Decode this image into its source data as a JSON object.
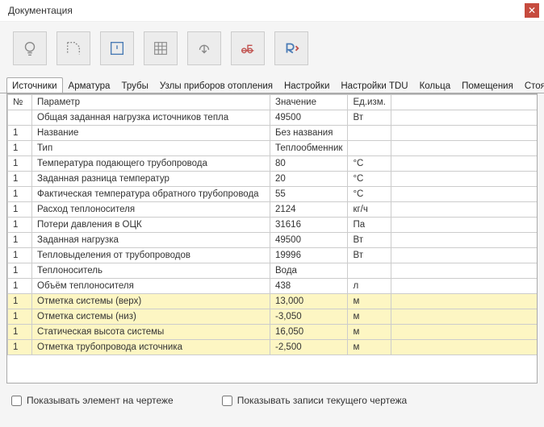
{
  "window": {
    "title": "Документация"
  },
  "toolbar_icons": [
    "bulb",
    "shape",
    "warn",
    "grid",
    "export",
    "object",
    "revit"
  ],
  "tabs": {
    "items": [
      "Источники",
      "Арматура",
      "Трубы",
      "Узлы приборов отопления",
      "Настройки",
      "Настройки TDU",
      "Кольца",
      "Помещения",
      "Стояки в перек"
    ],
    "active": 0
  },
  "table": {
    "headers": {
      "num": "№",
      "param": "Параметр",
      "value": "Значение",
      "unit": "Ед.изм."
    },
    "rows": [
      {
        "n": "",
        "p": "Общая заданная нагрузка источников тепла",
        "v": "49500",
        "u": "Вт",
        "hl": false
      },
      {
        "n": "1",
        "p": "Название",
        "v": "Без названия",
        "u": "",
        "hl": false
      },
      {
        "n": "1",
        "p": "Тип",
        "v": "Теплообменник",
        "u": "",
        "hl": false
      },
      {
        "n": "1",
        "p": "Температура подающего трубопровода",
        "v": "80",
        "u": "°C",
        "hl": false
      },
      {
        "n": "1",
        "p": "Заданная разница температур",
        "v": "20",
        "u": "°C",
        "hl": false
      },
      {
        "n": "1",
        "p": "Фактическая температура обратного трубопровода",
        "v": "55",
        "u": "°C",
        "hl": false
      },
      {
        "n": "1",
        "p": "Расход теплоносителя",
        "v": "2124",
        "u": "кг/ч",
        "hl": false
      },
      {
        "n": "1",
        "p": "Потери давления в ОЦК",
        "v": "31616",
        "u": "Па",
        "hl": false
      },
      {
        "n": "1",
        "p": "Заданная нагрузка",
        "v": "49500",
        "u": "Вт",
        "hl": false
      },
      {
        "n": "1",
        "p": "Тепловыделения от трубопроводов",
        "v": "19996",
        "u": "Вт",
        "hl": false
      },
      {
        "n": "1",
        "p": "Теплоноситель",
        "v": "Вода",
        "u": "",
        "hl": false
      },
      {
        "n": "1",
        "p": "Объём теплоносителя",
        "v": "438",
        "u": "л",
        "hl": false
      },
      {
        "n": "1",
        "p": "Отметка системы (верх)",
        "v": "13,000",
        "u": "м",
        "hl": true
      },
      {
        "n": "1",
        "p": "Отметка системы (низ)",
        "v": "-3,050",
        "u": "м",
        "hl": true
      },
      {
        "n": "1",
        "p": "Статическая высота системы",
        "v": "16,050",
        "u": "м",
        "hl": true
      },
      {
        "n": "1",
        "p": "Отметка трубопровода источника",
        "v": "-2,500",
        "u": "м",
        "hl": true
      }
    ],
    "highlight_color": "#fdf6c3"
  },
  "footer": {
    "chk1": "Показывать элемент на чертеже",
    "chk2": "Показывать записи текущего чертежа"
  },
  "colors": {
    "close_btn": "#c64b3e",
    "border": "#aaaaaa",
    "cell_border": "#cccccc",
    "toolbar_bg": "#ececec",
    "icon_blue": "#4a7bb5",
    "icon_red": "#c0504d"
  }
}
